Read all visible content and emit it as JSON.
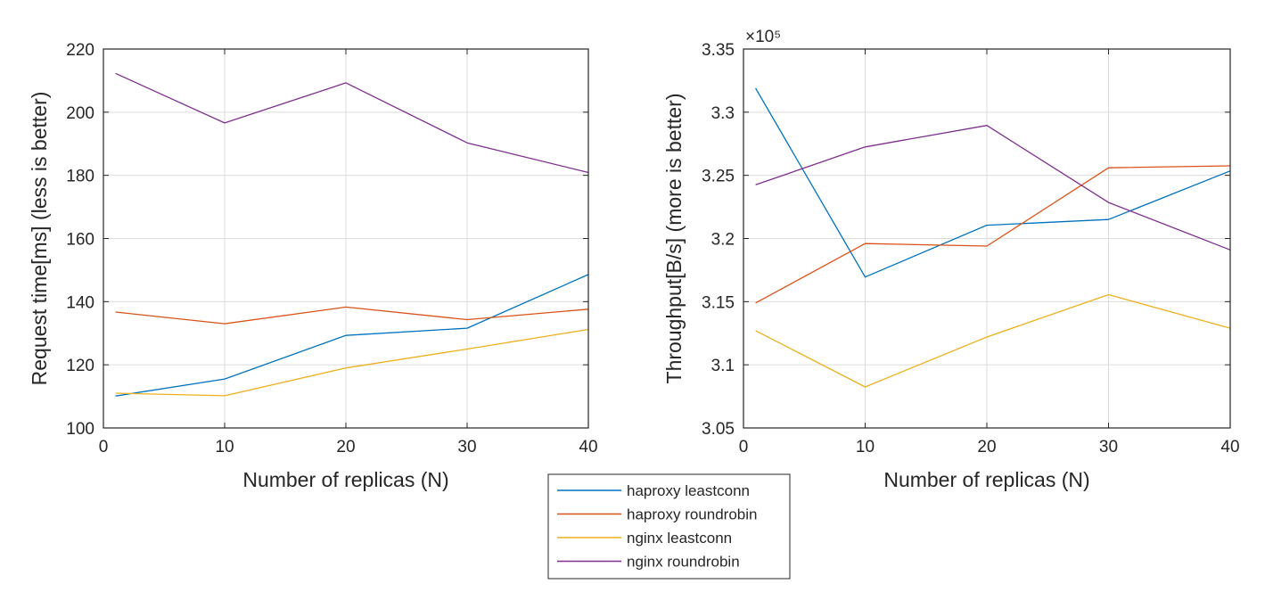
{
  "colors": {
    "haproxy_leastconn": "#0072BD",
    "haproxy_roundrobin": "#D95319",
    "nginx_leastconn": "#EDB120",
    "nginx_roundrobin": "#7E2F8E",
    "grid": "#dcdcdc",
    "axis": "#262626"
  },
  "legend": {
    "placement": "bottom-center",
    "entries": [
      "haproxy leastconn",
      "haproxy roundrobin",
      "nginx leastconn",
      "nginx roundrobin"
    ]
  },
  "chart_data": [
    {
      "type": "line",
      "xlabel": "Number of replicas (N)",
      "ylabel": "Request time[ms] (less is better)",
      "xlim": [
        0,
        40
      ],
      "ylim": [
        100,
        220
      ],
      "xticks": [
        0,
        10,
        20,
        30,
        40
      ],
      "yticks": [
        100,
        120,
        140,
        160,
        180,
        200,
        220
      ],
      "xtick_labels": [
        "0",
        "10",
        "20",
        "30",
        "40"
      ],
      "ytick_labels": [
        "100",
        "120",
        "140",
        "160",
        "180",
        "200",
        "220"
      ],
      "exponent_label": "",
      "grid": true,
      "x": [
        1,
        10,
        20,
        30,
        40
      ],
      "series": [
        {
          "name": "haproxy leastconn",
          "values": [
            110.1,
            115.5,
            129.3,
            131.6,
            148.6
          ]
        },
        {
          "name": "haproxy roundrobin",
          "values": [
            136.7,
            133.0,
            138.3,
            134.3,
            137.6
          ]
        },
        {
          "name": "nginx leastconn",
          "values": [
            111.0,
            110.2,
            119.0,
            125.0,
            131.2
          ]
        },
        {
          "name": "nginx roundrobin",
          "values": [
            212.3,
            196.6,
            209.3,
            190.3,
            180.9
          ]
        }
      ]
    },
    {
      "type": "line",
      "xlabel": "Number of replicas (N)",
      "ylabel": "Throughput[B/s] (more is better)",
      "xlim": [
        0,
        40
      ],
      "ylim": [
        305000,
        335000
      ],
      "xticks": [
        0,
        10,
        20,
        30,
        40
      ],
      "yticks": [
        305000,
        310000,
        315000,
        320000,
        325000,
        330000,
        335000
      ],
      "xtick_labels": [
        "0",
        "10",
        "20",
        "30",
        "40"
      ],
      "ytick_labels": [
        "3.05",
        "3.1",
        "3.15",
        "3.2",
        "3.25",
        "3.3",
        "3.35"
      ],
      "exponent_label": "×10⁵",
      "grid": true,
      "x": [
        1,
        10,
        20,
        30,
        40
      ],
      "series": [
        {
          "name": "haproxy leastconn",
          "values": [
            331900,
            316950,
            321050,
            321500,
            325350
          ]
        },
        {
          "name": "haproxy roundrobin",
          "values": [
            314900,
            319600,
            319400,
            325600,
            325750
          ]
        },
        {
          "name": "nginx leastconn",
          "values": [
            312700,
            308250,
            312200,
            315550,
            312900
          ]
        },
        {
          "name": "nginx roundrobin",
          "values": [
            324250,
            327250,
            328950,
            322850,
            319100
          ]
        }
      ]
    }
  ]
}
